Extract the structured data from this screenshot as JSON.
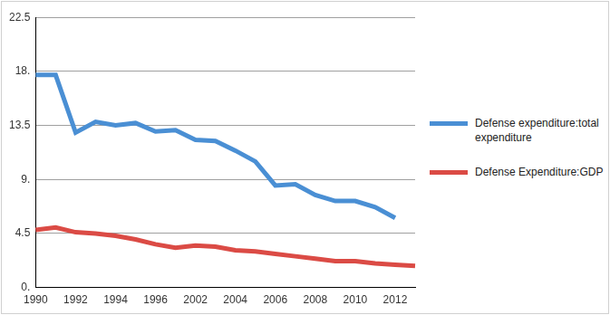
{
  "chart_data": {
    "type": "line",
    "categories": [
      1990,
      null,
      1992,
      null,
      1994,
      null,
      1996,
      null,
      2002,
      null,
      2004,
      null,
      2006,
      null,
      2008,
      null,
      2010,
      null,
      2012,
      null
    ],
    "series": [
      {
        "name": "Defense expenditure:total expenditure",
        "color": "#4a8fd4",
        "values": [
          17.7,
          17.7,
          12.9,
          13.8,
          13.5,
          13.7,
          13.0,
          13.1,
          12.3,
          12.2,
          11.4,
          10.5,
          8.5,
          8.6,
          7.7,
          7.2,
          7.2,
          6.7,
          5.8,
          null
        ]
      },
      {
        "name": "Defense Expenditure:GDP",
        "color": "#db4b45",
        "values": [
          4.8,
          5.0,
          4.6,
          4.5,
          4.3,
          4.0,
          3.6,
          3.3,
          3.5,
          3.4,
          3.1,
          3.0,
          2.8,
          2.6,
          2.4,
          2.2,
          2.2,
          2.0,
          1.9,
          1.8
        ]
      }
    ],
    "ylim": [
      0,
      22.5
    ],
    "yticks": [
      {
        "value": 0,
        "label": "0."
      },
      4.5,
      {
        "value": 9,
        "label": "9."
      },
      13.5,
      {
        "value": 18,
        "label": "18."
      },
      22.5
    ],
    "grid": true,
    "legend": "right"
  }
}
